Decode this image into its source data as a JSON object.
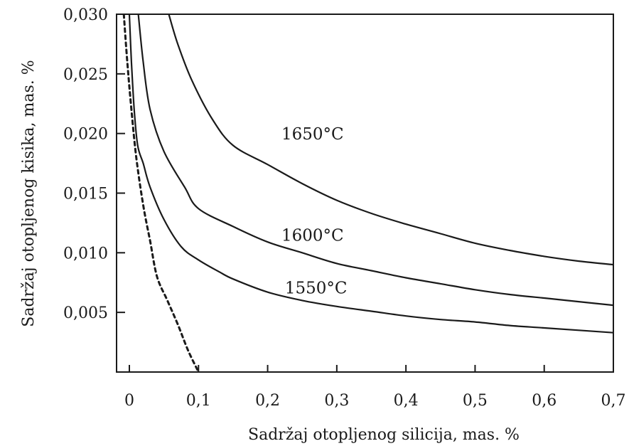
{
  "chart_data": {
    "type": "line",
    "title": "",
    "xlabel": "Sadržaj otopljenog silicija, mas. %",
    "ylabel": "Sadržaj otopljenog kisika, mas. %",
    "xlim": [
      0,
      0.7
    ],
    "ylim": [
      0,
      0.03
    ],
    "x_ticks": [
      {
        "value": 0,
        "label": "0"
      },
      {
        "value": 0.1,
        "label": "0,1"
      },
      {
        "value": 0.2,
        "label": "0,2"
      },
      {
        "value": 0.3,
        "label": "0,3"
      },
      {
        "value": 0.4,
        "label": "0,4"
      },
      {
        "value": 0.5,
        "label": "0,5"
      },
      {
        "value": 0.6,
        "label": "0,6"
      },
      {
        "value": 0.7,
        "label": "0,7"
      }
    ],
    "y_ticks": [
      {
        "value": 0.005,
        "label": "0,005"
      },
      {
        "value": 0.01,
        "label": "0,010"
      },
      {
        "value": 0.015,
        "label": "0,015"
      },
      {
        "value": 0.02,
        "label": "0,020"
      },
      {
        "value": 0.025,
        "label": "0,025"
      },
      {
        "value": 0.03,
        "label": "0,030"
      }
    ],
    "grid": false,
    "legend": "none",
    "series": [
      {
        "name": "1650°C",
        "style": "solid",
        "label_at": [
          0.22,
          0.0195
        ],
        "points": [
          [
            0.057,
            0.03
          ],
          [
            0.07,
            0.0275
          ],
          [
            0.09,
            0.0245
          ],
          [
            0.12,
            0.0212
          ],
          [
            0.15,
            0.019
          ],
          [
            0.2,
            0.0174
          ],
          [
            0.25,
            0.0158
          ],
          [
            0.3,
            0.0144
          ],
          [
            0.35,
            0.0133
          ],
          [
            0.4,
            0.0124
          ],
          [
            0.45,
            0.0116
          ],
          [
            0.5,
            0.0108
          ],
          [
            0.55,
            0.0102
          ],
          [
            0.6,
            0.0097
          ],
          [
            0.65,
            0.0093
          ],
          [
            0.7,
            0.009
          ]
        ]
      },
      {
        "name": "1600°C",
        "style": "solid",
        "label_at": [
          0.22,
          0.011
        ],
        "points": [
          [
            0.013,
            0.03
          ],
          [
            0.02,
            0.026
          ],
          [
            0.03,
            0.022
          ],
          [
            0.05,
            0.0185
          ],
          [
            0.08,
            0.0155
          ],
          [
            0.1,
            0.0137
          ],
          [
            0.15,
            0.0122
          ],
          [
            0.2,
            0.0109
          ],
          [
            0.25,
            0.01
          ],
          [
            0.3,
            0.0091
          ],
          [
            0.35,
            0.0085
          ],
          [
            0.4,
            0.0079
          ],
          [
            0.45,
            0.0074
          ],
          [
            0.5,
            0.0069
          ],
          [
            0.55,
            0.0065
          ],
          [
            0.6,
            0.0062
          ],
          [
            0.65,
            0.0059
          ],
          [
            0.7,
            0.0056
          ]
        ]
      },
      {
        "name": "1550°C",
        "style": "solid",
        "label_at": [
          0.225,
          0.0066
        ],
        "points": [
          [
            0.0,
            0.03
          ],
          [
            0.003,
            0.026
          ],
          [
            0.007,
            0.022
          ],
          [
            0.012,
            0.019
          ],
          [
            0.02,
            0.0175
          ],
          [
            0.03,
            0.0155
          ],
          [
            0.05,
            0.0128
          ],
          [
            0.075,
            0.0105
          ],
          [
            0.1,
            0.0094
          ],
          [
            0.13,
            0.0084
          ],
          [
            0.15,
            0.0078
          ],
          [
            0.2,
            0.0067
          ],
          [
            0.25,
            0.006
          ],
          [
            0.3,
            0.0055
          ],
          [
            0.35,
            0.0051
          ],
          [
            0.4,
            0.0047
          ],
          [
            0.45,
            0.0044
          ],
          [
            0.5,
            0.0042
          ],
          [
            0.55,
            0.0039
          ],
          [
            0.6,
            0.0037
          ],
          [
            0.65,
            0.0035
          ],
          [
            0.7,
            0.0033
          ]
        ]
      },
      {
        "name": "",
        "style": "dashed",
        "points": [
          [
            -0.008,
            0.03
          ],
          [
            -0.003,
            0.026
          ],
          [
            0.003,
            0.022
          ],
          [
            0.01,
            0.018
          ],
          [
            0.02,
            0.014
          ],
          [
            0.03,
            0.011
          ],
          [
            0.04,
            0.008
          ],
          [
            0.055,
            0.006
          ],
          [
            0.07,
            0.004
          ],
          [
            0.085,
            0.0018
          ],
          [
            0.1,
            0.0
          ]
        ]
      }
    ]
  }
}
